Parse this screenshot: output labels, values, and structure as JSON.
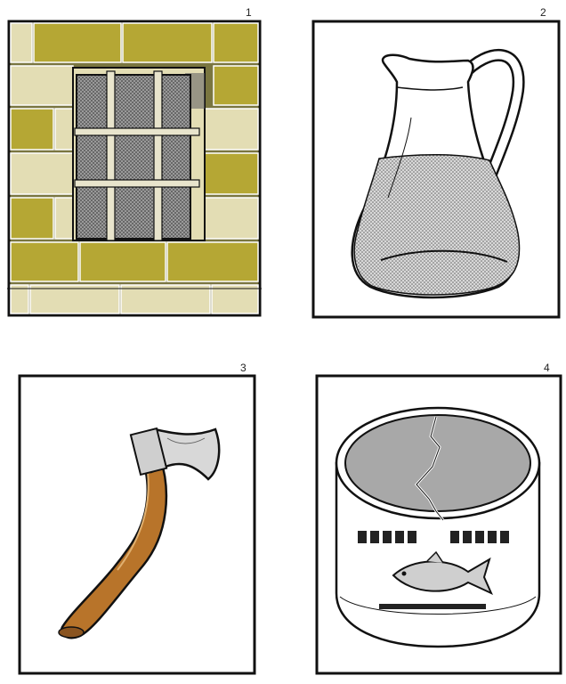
{
  "panels": [
    {
      "number": "1",
      "subject": "barred-window-in-brick-wall"
    },
    {
      "number": "2",
      "subject": "water-pitcher"
    },
    {
      "number": "3",
      "subject": "hatchet"
    },
    {
      "number": "4",
      "subject": "cracked-sardine-tin"
    }
  ],
  "colors": {
    "brick_dark": "#b5a734",
    "brick_light": "#e3ddb4",
    "mortar": "#7a7640",
    "axe_handle": "#b8742a",
    "tin_lid": "#a8a8a8",
    "window_glass": "#8a8a8a",
    "outline": "#111111"
  }
}
